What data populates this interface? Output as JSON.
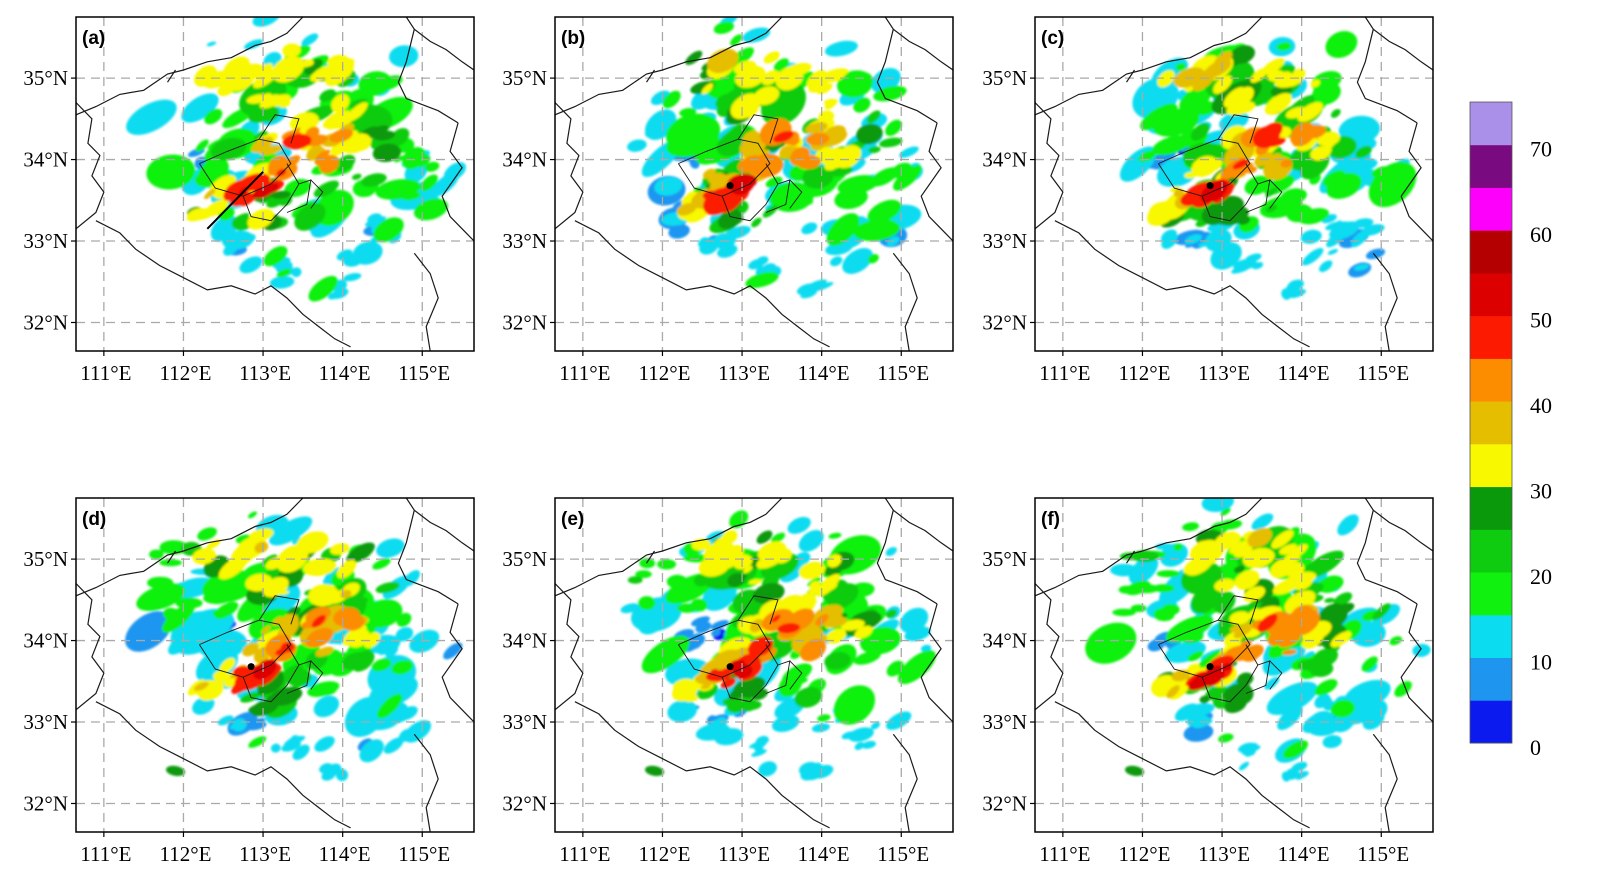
{
  "panels": [
    {
      "label": "(a)",
      "storm_line": true,
      "marker": false
    },
    {
      "label": "(b)",
      "storm_line": false,
      "marker": true
    },
    {
      "label": "(c)",
      "storm_line": false,
      "marker": true
    },
    {
      "label": "(d)",
      "storm_line": false,
      "marker": true
    },
    {
      "label": "(e)",
      "storm_line": false,
      "marker": true
    },
    {
      "label": "(f)",
      "storm_line": false,
      "marker": true
    }
  ],
  "map": {
    "lon_range": [
      110.65,
      115.65
    ],
    "lat_range": [
      31.65,
      35.75
    ],
    "lon_ticks": [
      111,
      112,
      113,
      114,
      115
    ],
    "lat_ticks": [
      32,
      33,
      34,
      35
    ],
    "lon_labels": [
      "111°E",
      "112°E",
      "113°E",
      "114°E",
      "115°E"
    ],
    "lat_labels": [
      "32°N",
      "33°N",
      "34°N",
      "35°N"
    ],
    "grid": true
  },
  "colorbar": {
    "min": 0,
    "max": 75,
    "step": 5,
    "colors": [
      "#0b1bf0",
      "#1e96f0",
      "#0bdcf0",
      "#10f110",
      "#10cc10",
      "#0a990a",
      "#f8f800",
      "#e6be00",
      "#fc8c00",
      "#fc1a00",
      "#dc0000",
      "#b40000",
      "#fc00fc",
      "#7a0a80",
      "#aa90e8"
    ],
    "tick_values": [
      0,
      10,
      20,
      30,
      40,
      50,
      60,
      70
    ],
    "tick_labels": [
      "0",
      "10",
      "20",
      "30",
      "40",
      "50",
      "60",
      "70"
    ]
  },
  "colors": {
    "grid": "#a9a9a9",
    "border": "#1a1a1a",
    "frame": "#000000",
    "marker": "#000000"
  }
}
